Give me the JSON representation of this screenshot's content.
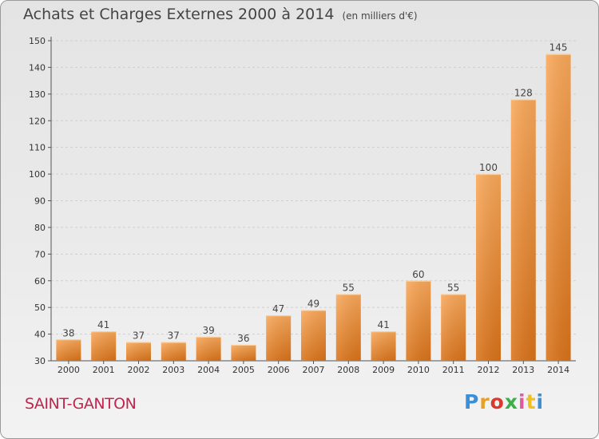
{
  "title": "Achats et Charges Externes 2000 à 2014",
  "unit_note": "(en milliers d'€)",
  "commune": "SAINT-GANTON",
  "logo": {
    "letters": [
      "P",
      "r",
      "o",
      "x",
      "i",
      "t",
      "i"
    ],
    "colors": [
      "#3a8fd6",
      "#e8a020",
      "#d93a2a",
      "#3bb04a",
      "#e05aa0",
      "#f0c020",
      "#3a8fd6"
    ]
  },
  "chart_data": {
    "type": "bar",
    "title": "Achats et Charges Externes 2000 à 2014",
    "subtitle": "(en milliers d'€)",
    "categories": [
      "2000",
      "2001",
      "2002",
      "2003",
      "2004",
      "2005",
      "2006",
      "2007",
      "2008",
      "2009",
      "2010",
      "2011",
      "2012",
      "2013",
      "2014"
    ],
    "values": [
      38,
      41,
      37,
      37,
      39,
      36,
      47,
      49,
      55,
      41,
      60,
      55,
      100,
      128,
      145
    ],
    "ylim": [
      30,
      150
    ],
    "yticks": [
      30,
      40,
      50,
      60,
      70,
      80,
      90,
      100,
      110,
      120,
      130,
      140,
      150
    ],
    "grid": true,
    "bar_color": "#f0922e",
    "data_labels": true
  }
}
